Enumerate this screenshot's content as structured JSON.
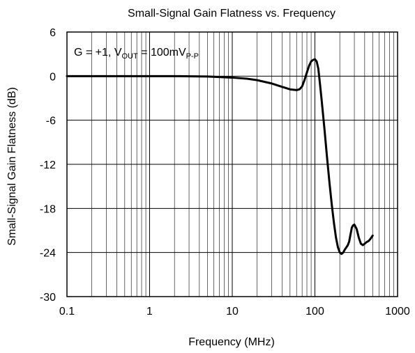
{
  "chart_data": {
    "type": "line",
    "title": "Small-Signal Gain Flatness vs. Frequency",
    "xlabel": "Frequency (MHz)",
    "ylabel": "Small-Signal Gain Flatness (dB)",
    "xscale": "log",
    "xlim": [
      0.1,
      1000
    ],
    "ylim": [
      -30,
      6
    ],
    "xticks": [
      0.1,
      1,
      10,
      100,
      1000
    ],
    "xtick_labels": [
      "0.1",
      "1",
      "10",
      "100",
      "1000"
    ],
    "yticks": [
      -30,
      -24,
      -18,
      -12,
      -6,
      0,
      6
    ],
    "ytick_labels": [
      "-30",
      "-24",
      "-18",
      "-12",
      "-6",
      "0",
      "6"
    ],
    "grid": true,
    "annotation": {
      "main": "G = +1, V",
      "sub1": "OUT",
      "mid": " = 100mV",
      "sub2": "P-P"
    },
    "series": [
      {
        "x": [
          0.1,
          0.2,
          0.5,
          1,
          2,
          5,
          10,
          15,
          20,
          30,
          40,
          50,
          60,
          65,
          70,
          75,
          80,
          85,
          90,
          95,
          100,
          105,
          110,
          115,
          120,
          130,
          140,
          150,
          160,
          170,
          180,
          190,
          200,
          210,
          220,
          230,
          240,
          250,
          260,
          270,
          280,
          290,
          300,
          320,
          340,
          360,
          380,
          400,
          420,
          450,
          480,
          500
        ],
        "y": [
          0,
          0,
          0,
          0,
          0,
          -0.05,
          -0.2,
          -0.35,
          -0.55,
          -1.0,
          -1.45,
          -1.8,
          -1.9,
          -1.8,
          -1.4,
          -0.5,
          0.5,
          1.4,
          2.0,
          2.2,
          2.3,
          2.0,
          1.0,
          -1.0,
          -3.0,
          -7.0,
          -11.0,
          -14.5,
          -17.5,
          -20.0,
          -22.0,
          -23.3,
          -24.0,
          -24.2,
          -24.0,
          -23.6,
          -23.3,
          -23.0,
          -22.5,
          -21.5,
          -20.6,
          -20.3,
          -20.2,
          -20.8,
          -22.0,
          -22.8,
          -23.0,
          -22.8,
          -22.6,
          -22.4,
          -22.0,
          -21.7
        ]
      }
    ]
  }
}
